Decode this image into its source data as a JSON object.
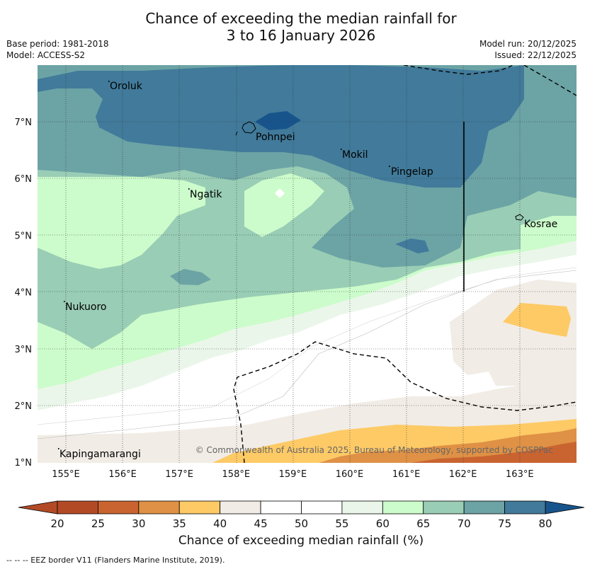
{
  "title": {
    "line1": "Chance of exceeding the median rainfall for",
    "line2": "3 to 16 January 2026"
  },
  "meta": {
    "base_period": "Base period: 1981-2018",
    "model": "Model: ACCESS-S2",
    "model_run": "Model run: 20/12/2025",
    "issued": "Issued: 22/12/2025"
  },
  "map": {
    "lon_ticks": [
      "155°E",
      "156°E",
      "157°E",
      "158°E",
      "159°E",
      "160°E",
      "161°E",
      "162°E",
      "163°E"
    ],
    "lat_ticks": [
      "7°N",
      "6°N",
      "5°N",
      "4°N",
      "3°N",
      "2°N",
      "1°N"
    ],
    "places": {
      "oroluk": "Oroluk",
      "pohnpei": "Pohnpei",
      "mokil": "Mokil",
      "pingelap": "Pingelap",
      "ngatik": "Ngatik",
      "kosrae": "Kosrae",
      "nukuoro": "Nukuoro",
      "kapingamarangi": "Kapingamarangi"
    },
    "copyright": "© Commonwealth of Australia 2025, Bureau of Meteorology, supported by COSPPac"
  },
  "colorbar": {
    "ticks": [
      "20",
      "25",
      "30",
      "35",
      "40",
      "45",
      "50",
      "55",
      "60",
      "65",
      "70",
      "75",
      "80"
    ],
    "colors": [
      "#b34a26",
      "#c96430",
      "#df9145",
      "#fdca66",
      "#f1ece5",
      "#ffffff",
      "#ffffff",
      "#ebf6ea",
      "#ccfccb",
      "#99cdb5",
      "#6ca3a5",
      "#417a9a",
      "#18548c"
    ],
    "title": "Chance of exceeding median rainfall (%)"
  },
  "eez_note": "--  --  -- EEZ border V11 (Flanders Marine Institute, 2019)."
}
